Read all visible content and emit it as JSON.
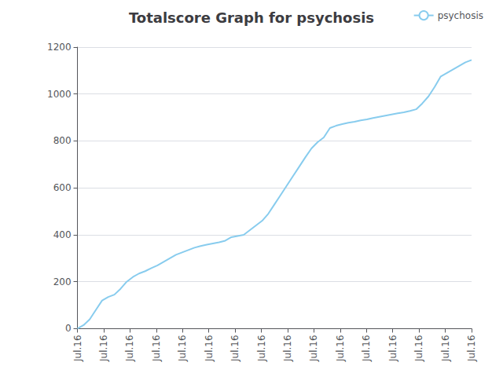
{
  "chart_data": {
    "type": "line",
    "title": "Totalscore Graph for psychosis",
    "x": [
      0,
      1,
      2,
      3,
      4,
      5,
      6,
      7,
      8,
      9,
      10,
      11,
      12,
      13,
      14,
      15,
      16,
      17,
      18,
      19,
      20,
      21,
      22,
      23,
      24,
      25,
      26,
      27,
      28,
      29,
      30,
      31,
      32,
      33,
      34,
      35,
      36,
      37,
      38,
      39,
      40,
      41,
      42,
      43,
      44,
      45,
      46,
      47,
      48,
      49,
      50,
      51,
      52,
      53,
      54,
      55,
      56,
      57,
      58,
      59,
      60,
      61,
      62,
      63,
      64
    ],
    "series": [
      {
        "name": "psychosis",
        "color": "#88ccee",
        "values": [
          0,
          15,
          40,
          80,
          120,
          135,
          145,
          170,
          200,
          220,
          235,
          245,
          258,
          270,
          285,
          300,
          315,
          325,
          335,
          345,
          352,
          358,
          363,
          368,
          375,
          390,
          395,
          400,
          420,
          440,
          460,
          490,
          530,
          570,
          610,
          650,
          690,
          730,
          768,
          795,
          815,
          855,
          865,
          872,
          878,
          882,
          888,
          892,
          898,
          903,
          908,
          913,
          918,
          922,
          928,
          935,
          960,
          990,
          1030,
          1075,
          1090,
          1105,
          1120,
          1135,
          1145
        ]
      }
    ],
    "xlim": [
      0,
      64
    ],
    "xticks": [
      {
        "value": 0,
        "label": "Jul.16"
      },
      {
        "value": 4.266666666666667,
        "label": "Jul.16"
      },
      {
        "value": 8.533333333333333,
        "label": "Jul.16"
      },
      {
        "value": 12.8,
        "label": "Jul.16"
      },
      {
        "value": 17.066666666666666,
        "label": "Jul.16"
      },
      {
        "value": 21.333333333333332,
        "label": "Jul.16"
      },
      {
        "value": 25.6,
        "label": "Jul.16"
      },
      {
        "value": 29.866666666666667,
        "label": "Jul.16"
      },
      {
        "value": 34.13333333333333,
        "label": "Jul.16"
      },
      {
        "value": 38.4,
        "label": "Jul.16"
      },
      {
        "value": 42.666666666666664,
        "label": "Jul.16"
      },
      {
        "value": 46.93333333333333,
        "label": "Jul.16"
      },
      {
        "value": 51.2,
        "label": "Jul.16"
      },
      {
        "value": 55.46666666666667,
        "label": "Jul.16"
      },
      {
        "value": 59.733333333333334,
        "label": "Jul.16"
      },
      {
        "value": 64,
        "label": "Jul.16"
      }
    ],
    "ylim": [
      0,
      1200
    ],
    "yticks": [
      0,
      200,
      400,
      600,
      800,
      1000,
      1200
    ],
    "grid": true,
    "legend": "upper right"
  }
}
